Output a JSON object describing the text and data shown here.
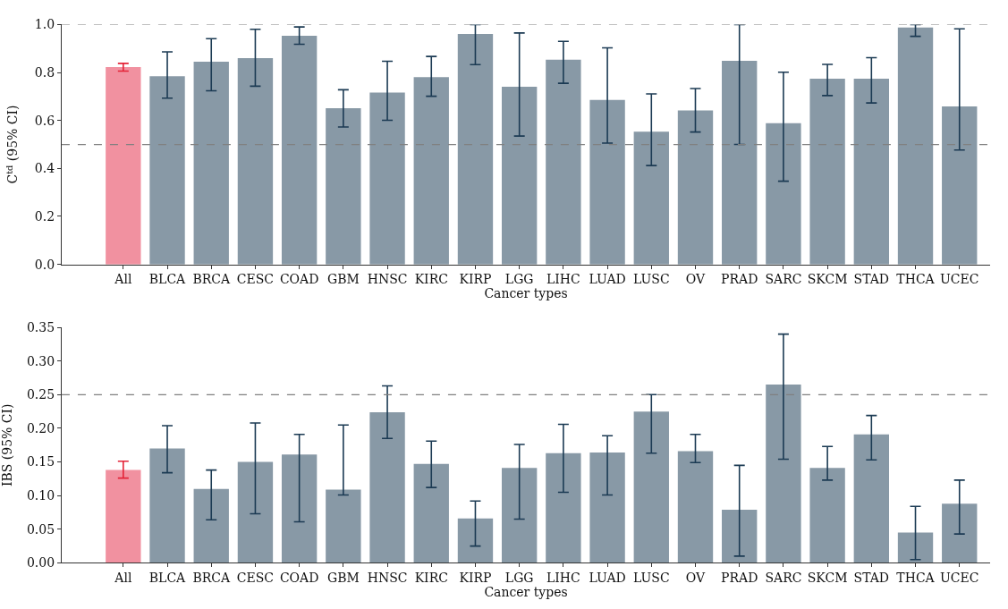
{
  "chart_data": [
    {
      "type": "bar",
      "xlabel": "Cancer types",
      "ylabel": "C$^{td}$ (95% CI)",
      "categories": [
        "All",
        "BLCA",
        "BRCA",
        "CESC",
        "COAD",
        "GBM",
        "HNSC",
        "KIRC",
        "KIRP",
        "LGG",
        "LIHC",
        "LUAD",
        "LUSC",
        "OV",
        "PRAD",
        "SARC",
        "SKCM",
        "STAD",
        "THCA",
        "UCEC"
      ],
      "series": [
        {
          "color": "#f191a0",
          "values": [
            0.823,
            null,
            null,
            null,
            null,
            null,
            null,
            null,
            null,
            null,
            null,
            null,
            null,
            null,
            null,
            null,
            null,
            null,
            null,
            null
          ],
          "errors": [
            [
              0.806,
              0.838
            ],
            null,
            null,
            null,
            null,
            null,
            null,
            null,
            null,
            null,
            null,
            null,
            null,
            null,
            null,
            null,
            null,
            null,
            null,
            null
          ]
        },
        {
          "color": "#8899a6",
          "values": [
            null,
            0.784,
            0.845,
            0.86,
            0.953,
            0.651,
            0.716,
            0.781,
            0.961,
            0.741,
            0.853,
            0.686,
            0.553,
            0.642,
            0.849,
            0.589,
            0.774,
            0.774,
            0.988,
            0.659
          ],
          "errors": [
            null,
            [
              0.693,
              0.886
            ],
            [
              0.724,
              0.941
            ],
            [
              0.743,
              0.98
            ],
            [
              0.918,
              0.99
            ],
            [
              0.573,
              0.728
            ],
            [
              0.601,
              0.847
            ],
            [
              0.701,
              0.867
            ],
            [
              0.833,
              1.0
            ],
            [
              0.535,
              0.965
            ],
            [
              0.755,
              0.93
            ],
            [
              0.506,
              0.903
            ],
            [
              0.412,
              0.711
            ],
            [
              0.552,
              0.733
            ],
            [
              0.5,
              1.0
            ],
            [
              0.347,
              0.801
            ],
            [
              0.704,
              0.834
            ],
            [
              0.673,
              0.862
            ],
            [
              0.951,
              1.0
            ],
            [
              0.477,
              0.982
            ]
          ]
        }
      ],
      "ylim": [
        0,
        1.0
      ],
      "yticks": [
        {
          "value": 0,
          "label": "0.0"
        },
        {
          "value": 0.2,
          "label": "0.2"
        },
        {
          "value": 0.4,
          "label": "0.4"
        },
        {
          "value": 0.6,
          "label": "0.6"
        },
        {
          "value": 0.8,
          "label": "0.8"
        },
        {
          "value": 1.0,
          "label": "1.0"
        }
      ],
      "ref_lines": [
        {
          "axis": "y",
          "value": 0.5,
          "color": "#808080",
          "line_style": "dashed"
        },
        {
          "axis": "y",
          "value": 1.0,
          "color": "#808080",
          "line_style": "dashed"
        }
      ]
    },
    {
      "type": "bar",
      "xlabel": "Cancer types",
      "ylabel": "IBS (95% CI)",
      "categories": [
        "All",
        "BLCA",
        "BRCA",
        "CESC",
        "COAD",
        "GBM",
        "HNSC",
        "KIRC",
        "KIRP",
        "LGG",
        "LIHC",
        "LUAD",
        "LUSC",
        "OV",
        "PRAD",
        "SARC",
        "SKCM",
        "STAD",
        "THCA",
        "UCEC"
      ],
      "series": [
        {
          "color": "#f191a0",
          "values": [
            0.138,
            null,
            null,
            null,
            null,
            null,
            null,
            null,
            null,
            null,
            null,
            null,
            null,
            null,
            null,
            null,
            null,
            null,
            null,
            null
          ],
          "errors": [
            [
              0.126,
              0.151
            ],
            null,
            null,
            null,
            null,
            null,
            null,
            null,
            null,
            null,
            null,
            null,
            null,
            null,
            null,
            null,
            null,
            null,
            null,
            null
          ]
        },
        {
          "color": "#8899a6",
          "values": [
            null,
            0.17,
            0.11,
            0.15,
            0.161,
            0.109,
            0.224,
            0.147,
            0.066,
            0.141,
            0.163,
            0.164,
            0.225,
            0.166,
            0.079,
            0.265,
            0.141,
            0.191,
            0.045,
            0.088
          ],
          "errors": [
            null,
            [
              0.134,
              0.204
            ],
            [
              0.064,
              0.138
            ],
            [
              0.073,
              0.208
            ],
            [
              0.061,
              0.191
            ],
            [
              0.101,
              0.205
            ],
            [
              0.185,
              0.263
            ],
            [
              0.112,
              0.181
            ],
            [
              0.025,
              0.092
            ],
            [
              0.065,
              0.176
            ],
            [
              0.105,
              0.206
            ],
            [
              0.101,
              0.189
            ],
            [
              0.163,
              0.25
            ],
            [
              0.149,
              0.191
            ],
            [
              0.01,
              0.145
            ],
            [
              0.154,
              0.34
            ],
            [
              0.123,
              0.173
            ],
            [
              0.153,
              0.219
            ],
            [
              0.005,
              0.084
            ],
            [
              0.043,
              0.123
            ]
          ]
        }
      ],
      "ylim": [
        0,
        0.35
      ],
      "yticks": [
        {
          "value": 0,
          "label": "0.00"
        },
        {
          "value": 0.05,
          "label": "0.05"
        },
        {
          "value": 0.1,
          "label": "0.10"
        },
        {
          "value": 0.15,
          "label": "0.15"
        },
        {
          "value": 0.2,
          "label": "0.20"
        },
        {
          "value": 0.25,
          "label": "0.25"
        },
        {
          "value": 0.3,
          "label": "0.30"
        },
        {
          "value": 0.35,
          "label": "0.35"
        }
      ],
      "ref_lines": [
        {
          "axis": "y",
          "value": 0.25,
          "color": "#808080",
          "line_style": "dashed"
        }
      ]
    }
  ]
}
